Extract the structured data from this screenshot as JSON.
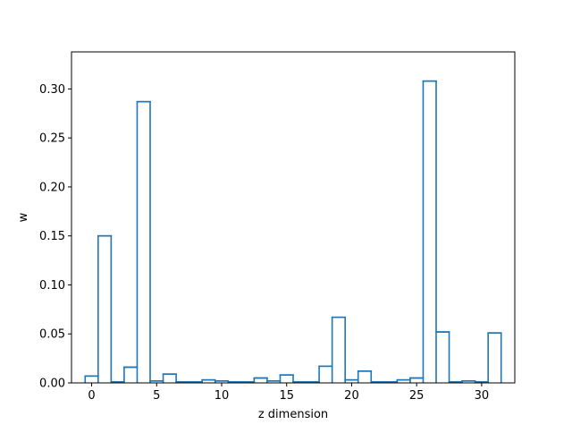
{
  "chart_data": {
    "type": "step",
    "title": "",
    "xlabel": "z dimension",
    "ylabel": "w",
    "xlim": [
      -1.55,
      32.55
    ],
    "ylim": [
      0,
      0.3378
    ],
    "x_ticks": [
      0,
      5,
      10,
      15,
      20,
      25,
      30
    ],
    "y_ticks": [
      0.0,
      0.05,
      0.1,
      0.15,
      0.2,
      0.25,
      0.3
    ],
    "x_tick_labels": [
      "0",
      "5",
      "10",
      "15",
      "20",
      "25",
      "30"
    ],
    "y_tick_labels": [
      "0.00",
      "0.05",
      "0.10",
      "0.15",
      "0.20",
      "0.25",
      "0.30"
    ],
    "grid": false,
    "color": "#1f77b4",
    "x": [
      0,
      1,
      2,
      3,
      4,
      5,
      6,
      7,
      8,
      9,
      10,
      11,
      12,
      13,
      14,
      15,
      16,
      17,
      18,
      19,
      20,
      21,
      22,
      23,
      24,
      25,
      26,
      27,
      28,
      29,
      30,
      31
    ],
    "values": [
      0.007,
      0.15,
      0.001,
      0.016,
      0.287,
      0.002,
      0.009,
      0.001,
      0.001,
      0.003,
      0.002,
      0.001,
      0.001,
      0.005,
      0.002,
      0.008,
      0.001,
      0.001,
      0.017,
      0.067,
      0.003,
      0.012,
      0.001,
      0.001,
      0.003,
      0.005,
      0.308,
      0.052,
      0.001,
      0.002,
      0.001,
      0.051
    ]
  }
}
